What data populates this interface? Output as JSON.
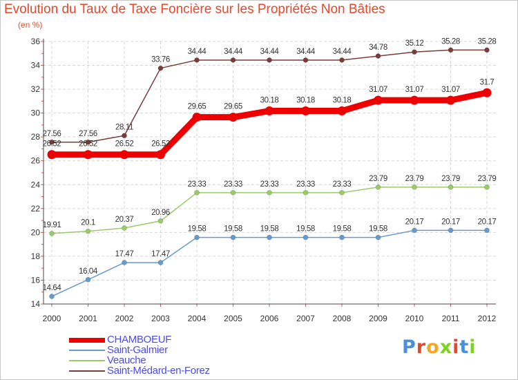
{
  "title": "Evolution du Taux de Taxe Foncière sur les Propriétés Non Bâties",
  "subtitle": "(en %)",
  "logo": {
    "letters": [
      "P",
      "r",
      "o",
      "x",
      "i",
      "t",
      "i"
    ],
    "colors": [
      "#4a90d9",
      "#e8462a",
      "#f5a623",
      "#7ed321",
      "#e8462a",
      "#4a90d9",
      "#7ed321"
    ]
  },
  "chart_data": {
    "type": "line",
    "title": "Evolution du Taux de Taxe Foncière sur les Propriétés Non Bâties",
    "ylabel": "(en %)",
    "xlabel": "",
    "x": [
      "2000",
      "2001",
      "2002",
      "2003",
      "2004",
      "2005",
      "2006",
      "2007",
      "2008",
      "2009",
      "2010",
      "2011",
      "2012"
    ],
    "ylim": [
      14,
      36
    ],
    "yticks": [
      14,
      16,
      18,
      20,
      22,
      24,
      26,
      28,
      30,
      32,
      34,
      36
    ],
    "grid": true,
    "legend_position": "bottom-left",
    "series": [
      {
        "name": "CHAMBOEUF",
        "color": "#ee0000",
        "values": [
          26.52,
          26.52,
          26.52,
          26.52,
          29.65,
          29.65,
          30.18,
          30.18,
          30.18,
          31.07,
          31.07,
          31.07,
          31.7
        ],
        "labels": [
          "26.52",
          "26.52",
          "26.52",
          "26.52",
          "29.65",
          "29.65",
          "30.18",
          "30.18",
          "30.18",
          "31.07",
          "31.07",
          "31.07",
          "31.7"
        ]
      },
      {
        "name": "Saint-Galmier",
        "color": "#6699cc",
        "values": [
          14.64,
          16.04,
          17.47,
          17.47,
          19.58,
          19.58,
          19.58,
          19.58,
          19.58,
          19.58,
          20.17,
          20.17,
          20.17
        ],
        "labels": [
          "14.64",
          "16.04",
          "17.47",
          "17.47",
          "19.58",
          "19.58",
          "19.58",
          "19.58",
          "19.58",
          "19.58",
          "20.17",
          "20.17",
          "20.17"
        ]
      },
      {
        "name": "Veauche",
        "color": "#99cc66",
        "values": [
          19.91,
          20.1,
          20.37,
          20.96,
          23.33,
          23.33,
          23.33,
          23.33,
          23.33,
          23.79,
          23.79,
          23.79,
          23.79
        ],
        "labels": [
          "19.91",
          "20.1",
          "20.37",
          "20.96",
          "23.33",
          "23.33",
          "23.33",
          "23.33",
          "23.33",
          "23.79",
          "23.79",
          "23.79",
          "23.79"
        ]
      },
      {
        "name": "Saint-Médard-en-Forez",
        "color": "#7a3b3b",
        "values": [
          27.56,
          27.56,
          28.11,
          33.76,
          34.44,
          34.44,
          34.44,
          34.44,
          34.44,
          34.78,
          35.12,
          35.28,
          35.28
        ],
        "labels": [
          "27.56",
          "27.56",
          "28.11",
          "33.76",
          "34.44",
          "34.44",
          "34.44",
          "34.44",
          "34.44",
          "34.78",
          "35.12",
          "35.28",
          "35.28"
        ]
      }
    ]
  }
}
